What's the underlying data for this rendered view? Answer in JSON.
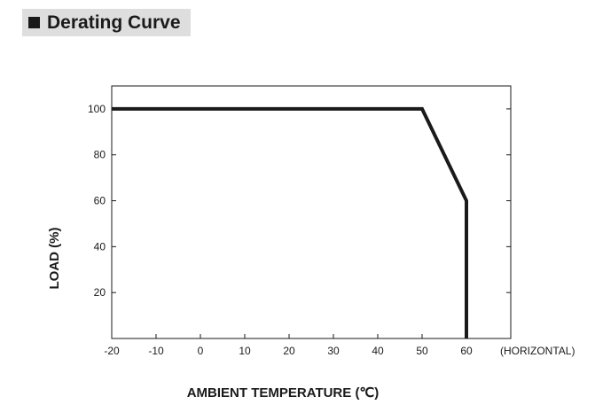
{
  "header": {
    "title": "Derating Curve"
  },
  "chart_data": {
    "type": "line",
    "title": "Derating Curve",
    "xlabel": "AMBIENT TEMPERATURE (℃)",
    "ylabel": "LOAD (%)",
    "x_note": "(HORIZONTAL)",
    "xlim": [
      -20,
      70
    ],
    "ylim": [
      0,
      110
    ],
    "x_ticks": [
      -20,
      -10,
      0,
      10,
      20,
      30,
      40,
      50,
      60
    ],
    "y_ticks": [
      20,
      40,
      60,
      80,
      100
    ],
    "grid": false,
    "series": [
      {
        "x": [
          -20,
          50,
          60,
          60
        ],
        "y": [
          100,
          100,
          60,
          0
        ]
      }
    ],
    "colors": {
      "line": "#1a1a1a",
      "frame": "#1a1a1a"
    }
  }
}
